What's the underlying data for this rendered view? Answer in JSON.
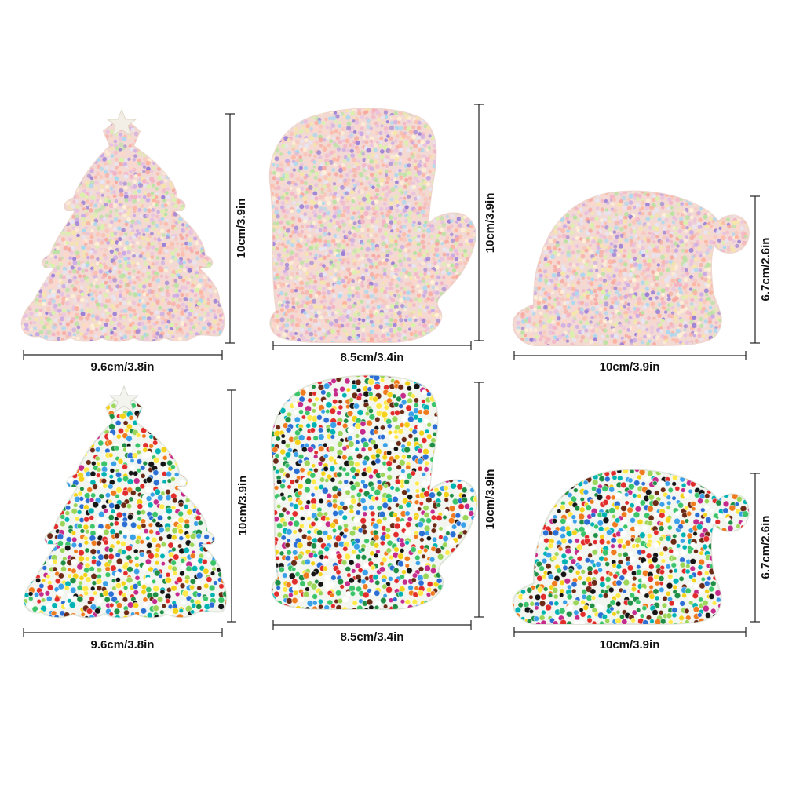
{
  "colors": {
    "background": "#ffffff",
    "dimension_line": "#222222",
    "pastel_base": "#f2d9d4",
    "pastel_beads": [
      "#f7a9a0",
      "#f9c4b8",
      "#ffd6c9",
      "#f3b3c6",
      "#e8c0e0",
      "#c9a8e6",
      "#9a7fd6",
      "#b7e3a0",
      "#d8f2a8",
      "#a8d8f0",
      "#fff1d6",
      "#f5e6a8",
      "#ffb3a0",
      "#e6e6f5"
    ],
    "bright_base": "#f3f6f0",
    "bright_beads": [
      "#e22b2b",
      "#f4d21c",
      "#ffe94a",
      "#2b6fd4",
      "#3aa0e8",
      "#3cc46a",
      "#1e8f45",
      "#f07a1e",
      "#141414",
      "#6b2a16",
      "#ffffff",
      "#9bd65a",
      "#c42b8a",
      "#00b3b3"
    ]
  },
  "products": [
    {
      "name": "Christmas Tree",
      "variant": "pastel",
      "icon": "christmas-tree-icon",
      "width_label": "9.6cm/3.8in",
      "height_label": "10cm/3.9in"
    },
    {
      "name": "Mitten",
      "variant": "pastel",
      "icon": "mitten-icon",
      "width_label": "8.5cm/3.4in",
      "height_label": "10cm/3.9in"
    },
    {
      "name": "Santa Hat",
      "variant": "pastel",
      "icon": "santa-hat-icon",
      "width_label": "10cm/3.9in",
      "height_label": "6.7cm/2.6in"
    },
    {
      "name": "Christmas Tree",
      "variant": "bright",
      "icon": "christmas-tree-icon",
      "width_label": "9.6cm/3.8in",
      "height_label": "10cm/3.9in"
    },
    {
      "name": "Mitten",
      "variant": "bright",
      "icon": "mitten-icon",
      "width_label": "8.5cm/3.4in",
      "height_label": "10cm/3.9in"
    },
    {
      "name": "Santa Hat",
      "variant": "bright",
      "icon": "santa-hat-icon",
      "width_label": "10cm/3.9in",
      "height_label": "6.7cm/2.6in"
    }
  ]
}
